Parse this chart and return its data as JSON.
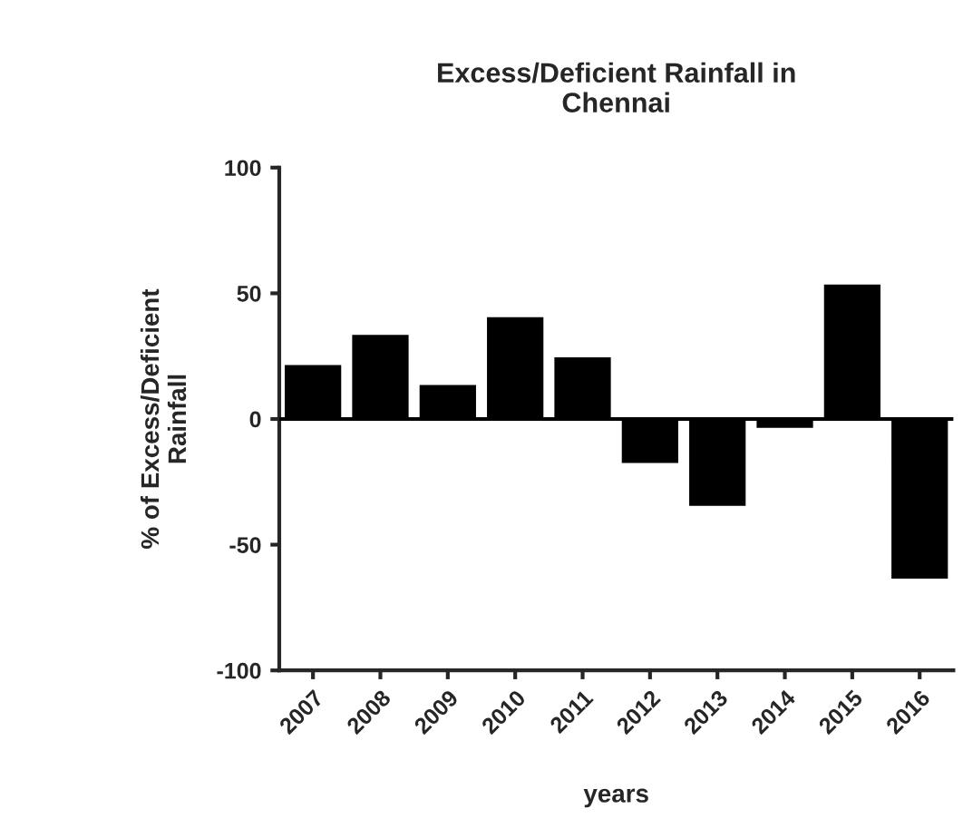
{
  "chart_data": {
    "type": "bar",
    "title": "Excess/Deficient Rainfall in\nChennai",
    "xlabel": "years",
    "ylabel": "% of Excess/Deficient\nRainfall",
    "categories": [
      "2007",
      "2008",
      "2009",
      "2010",
      "2011",
      "2012",
      "2013",
      "2014",
      "2015",
      "2016"
    ],
    "values": [
      21,
      33,
      13,
      40,
      24,
      -17,
      -34,
      -3,
      53,
      -63
    ],
    "color": "#000000",
    "ylim": [
      -100,
      100
    ],
    "yticks": [
      -100,
      -50,
      0,
      50,
      100
    ],
    "grid": false,
    "ref_lines": [
      {
        "axis": "y",
        "value": 0
      }
    ]
  }
}
